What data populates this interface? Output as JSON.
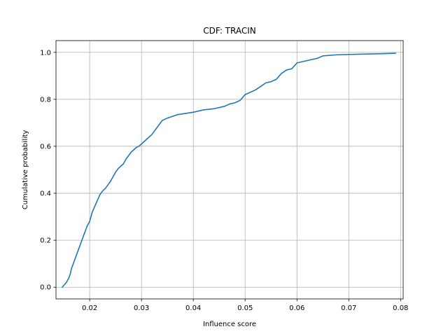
{
  "chart_data": {
    "type": "line",
    "title": "CDF: TRACIN",
    "xlabel": "Influence score",
    "ylabel": "Cumulative probability",
    "xlim": [
      0.0135,
      0.0805
    ],
    "ylim": [
      -0.05,
      1.05
    ],
    "xticks": [
      0.02,
      0.03,
      0.04,
      0.05,
      0.06,
      0.07,
      0.08
    ],
    "xtick_labels": [
      "0.02",
      "0.03",
      "0.04",
      "0.05",
      "0.06",
      "0.07",
      "0.08"
    ],
    "yticks": [
      0.0,
      0.2,
      0.4,
      0.6,
      0.8,
      1.0
    ],
    "ytick_labels": [
      "0.0",
      "0.2",
      "0.4",
      "0.6",
      "0.8",
      "1.0"
    ],
    "grid": true,
    "color": "#1f77b4",
    "series": [
      {
        "x": [
          0.0147,
          0.0155,
          0.016,
          0.0163,
          0.0165,
          0.017,
          0.0175,
          0.018,
          0.0185,
          0.019,
          0.0195,
          0.02,
          0.0205,
          0.021,
          0.0215,
          0.022,
          0.0225,
          0.023,
          0.0235,
          0.024,
          0.0245,
          0.025,
          0.0255,
          0.026,
          0.0265,
          0.027,
          0.0275,
          0.028,
          0.0285,
          0.029,
          0.0295,
          0.03,
          0.031,
          0.032,
          0.033,
          0.034,
          0.035,
          0.037,
          0.04,
          0.042,
          0.044,
          0.046,
          0.047,
          0.048,
          0.049,
          0.05,
          0.051,
          0.052,
          0.053,
          0.054,
          0.055,
          0.056,
          0.057,
          0.058,
          0.059,
          0.06,
          0.062,
          0.064,
          0.065,
          0.068,
          0.072,
          0.076,
          0.079
        ],
        "y": [
          0.0,
          0.02,
          0.04,
          0.06,
          0.08,
          0.11,
          0.14,
          0.17,
          0.2,
          0.23,
          0.26,
          0.28,
          0.32,
          0.345,
          0.37,
          0.395,
          0.41,
          0.42,
          0.435,
          0.45,
          0.47,
          0.49,
          0.505,
          0.515,
          0.525,
          0.545,
          0.56,
          0.575,
          0.585,
          0.595,
          0.6,
          0.61,
          0.63,
          0.65,
          0.68,
          0.71,
          0.72,
          0.735,
          0.745,
          0.755,
          0.76,
          0.77,
          0.78,
          0.785,
          0.795,
          0.82,
          0.83,
          0.84,
          0.855,
          0.87,
          0.875,
          0.885,
          0.91,
          0.925,
          0.93,
          0.955,
          0.965,
          0.975,
          0.985,
          0.99,
          0.992,
          0.994,
          0.996
        ]
      }
    ]
  }
}
